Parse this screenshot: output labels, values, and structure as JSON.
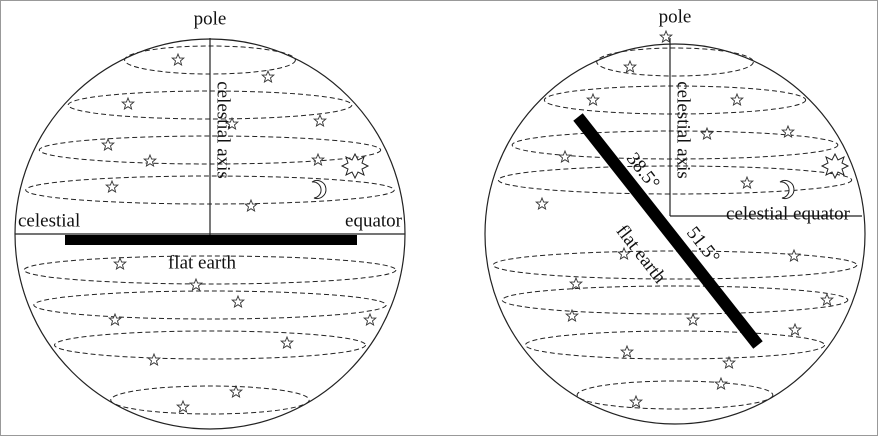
{
  "left": {
    "pole": "pole",
    "axis": "celestial axis",
    "equator_left": "celestial",
    "equator_right": "equator",
    "earth": "flat earth"
  },
  "right": {
    "pole": "pole",
    "axis": "celestial axis",
    "equator": "celestial equator",
    "earth": "flat earth",
    "angle_upper": "38.5°",
    "angle_lower": "51.5°"
  }
}
